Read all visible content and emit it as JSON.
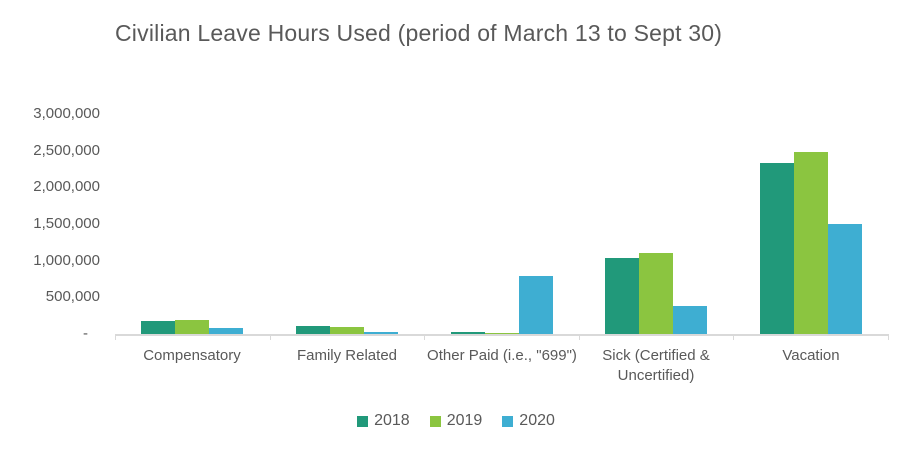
{
  "title": "Civilian Leave Hours Used (period of March 13 to Sept 30)",
  "colors": {
    "axis_line": "#d9d9d9",
    "text": "#595959",
    "background": "#ffffff"
  },
  "chart_data": {
    "type": "bar",
    "title": "Civilian Leave Hours Used (period of March 13 to Sept 30)",
    "categories": [
      "Compensatory",
      "Family Related",
      "Other Paid (i.e., \"699\")",
      "Sick (Certified & Uncertified)",
      "Vacation"
    ],
    "series": [
      {
        "name": "2018",
        "color": "#21997a",
        "values": [
          175000,
          105000,
          30000,
          1030000,
          2330000
        ]
      },
      {
        "name": "2019",
        "color": "#8bc540",
        "values": [
          190000,
          100000,
          15000,
          1100000,
          2480000
        ]
      },
      {
        "name": "2020",
        "color": "#3eaed2",
        "values": [
          80000,
          30000,
          790000,
          380000,
          1500000
        ]
      }
    ],
    "xlabel": "",
    "ylabel": "",
    "ylim": [
      0,
      3000000
    ],
    "y_tick_interval": 500000,
    "y_tick_labels": [
      "3,000,000",
      "2,500,000",
      "2,000,000",
      "1,500,000",
      "1,000,000",
      "500,000",
      "-"
    ],
    "y_tick_values": [
      3000000,
      2500000,
      2000000,
      1500000,
      1000000,
      500000,
      0
    ],
    "grid": false,
    "legend_position": "bottom"
  }
}
